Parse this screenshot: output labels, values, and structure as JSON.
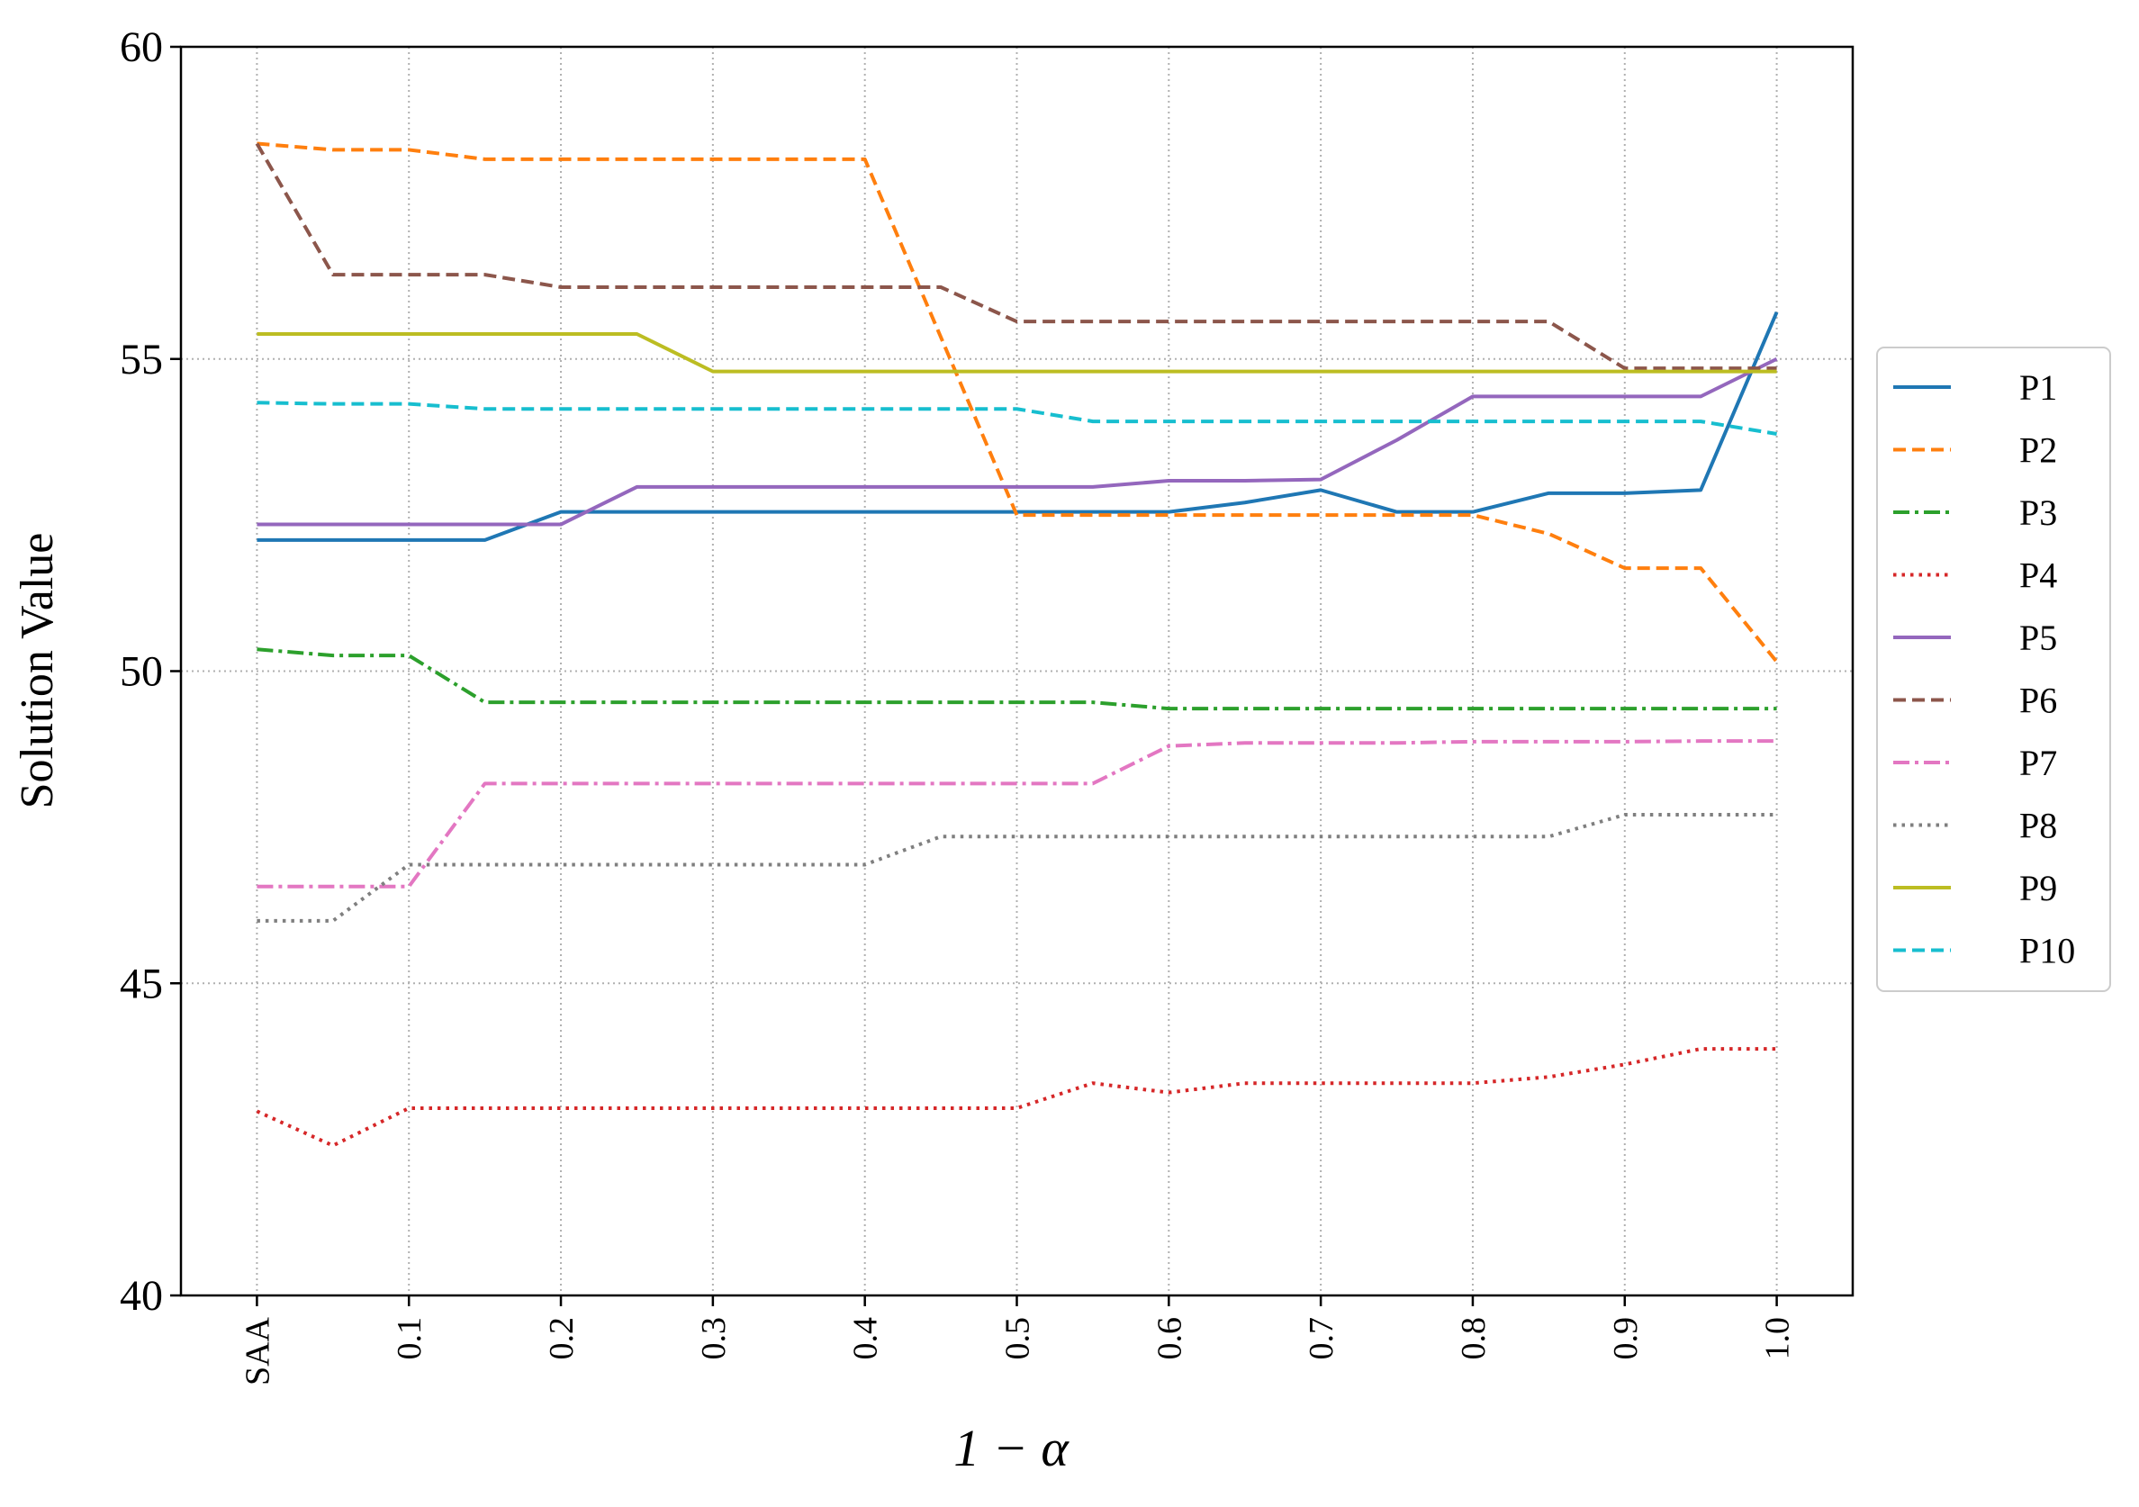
{
  "chart_data": {
    "type": "line",
    "x_label": "1 − α",
    "y_label": "Solution Value",
    "x": [
      0,
      0.05,
      0.1,
      0.15,
      0.2,
      0.25,
      0.3,
      0.35,
      0.4,
      0.45,
      0.5,
      0.55,
      0.6,
      0.65,
      0.7,
      0.75,
      0.8,
      0.85,
      0.9,
      0.95,
      1.0
    ],
    "xlim": [
      -0.05,
      1.05
    ],
    "xticks": [
      {
        "value": 0,
        "label": "SAA"
      },
      0.1,
      0.2,
      0.3,
      0.4,
      0.5,
      0.6,
      0.7,
      0.8,
      0.9,
      {
        "value": 1,
        "label": "1.0"
      }
    ],
    "ylim": [
      40,
      60
    ],
    "yticks": [
      40,
      45,
      50,
      55,
      60
    ],
    "grid": true,
    "legend": "right",
    "series": [
      {
        "name": "P1",
        "color": "#1f77b4",
        "linestyle": "solid",
        "values": [
          52.1,
          52.1,
          52.1,
          52.1,
          52.55,
          52.55,
          52.55,
          52.55,
          52.55,
          52.55,
          52.55,
          52.55,
          52.55,
          52.7,
          52.9,
          52.55,
          52.55,
          52.85,
          52.85,
          52.9,
          55.75
        ]
      },
      {
        "name": "P2",
        "color": "#ff7f0e",
        "linestyle": "dashed",
        "values": [
          58.45,
          58.35,
          58.35,
          58.2,
          58.2,
          58.2,
          58.2,
          58.2,
          58.2,
          55.35,
          52.5,
          52.5,
          52.5,
          52.5,
          52.5,
          52.5,
          52.5,
          52.2,
          51.65,
          51.65,
          50.15
        ]
      },
      {
        "name": "P3",
        "color": "#2ca02c",
        "linestyle": "dashdot",
        "values": [
          50.35,
          50.25,
          50.25,
          49.5,
          49.5,
          49.5,
          49.5,
          49.5,
          49.5,
          49.5,
          49.5,
          49.5,
          49.4,
          49.4,
          49.4,
          49.4,
          49.4,
          49.4,
          49.4,
          49.4,
          49.4
        ]
      },
      {
        "name": "P4",
        "color": "#d62728",
        "linestyle": "dotted",
        "values": [
          42.95,
          42.4,
          43.0,
          43.0,
          43.0,
          43.0,
          43.0,
          43.0,
          43.0,
          43.0,
          43.0,
          43.4,
          43.25,
          43.4,
          43.4,
          43.4,
          43.4,
          43.5,
          43.7,
          43.95,
          43.95
        ]
      },
      {
        "name": "P5",
        "color": "#9467bd",
        "linestyle": "solid",
        "values": [
          52.35,
          52.35,
          52.35,
          52.35,
          52.35,
          52.95,
          52.95,
          52.95,
          52.95,
          52.95,
          52.95,
          52.95,
          53.05,
          53.05,
          53.07,
          53.7,
          54.4,
          54.4,
          54.4,
          54.4,
          55.0
        ]
      },
      {
        "name": "P6",
        "color": "#8c564b",
        "linestyle": "dashed",
        "values": [
          58.45,
          56.35,
          56.35,
          56.35,
          56.15,
          56.15,
          56.15,
          56.15,
          56.15,
          56.15,
          55.6,
          55.6,
          55.6,
          55.6,
          55.6,
          55.6,
          55.6,
          55.6,
          54.85,
          54.85,
          54.85
        ]
      },
      {
        "name": "P7",
        "color": "#e377c2",
        "linestyle": "dashdot",
        "values": [
          46.55,
          46.55,
          46.55,
          48.2,
          48.2,
          48.2,
          48.2,
          48.2,
          48.2,
          48.2,
          48.2,
          48.2,
          48.8,
          48.85,
          48.85,
          48.85,
          48.87,
          48.87,
          48.87,
          48.88,
          48.88
        ]
      },
      {
        "name": "P8",
        "color": "#7f7f7f",
        "linestyle": "dotted",
        "values": [
          46.0,
          46.0,
          46.9,
          46.9,
          46.9,
          46.9,
          46.9,
          46.9,
          46.9,
          47.35,
          47.35,
          47.35,
          47.35,
          47.35,
          47.35,
          47.35,
          47.35,
          47.35,
          47.7,
          47.7,
          47.7
        ]
      },
      {
        "name": "P9",
        "color": "#bcbd22",
        "linestyle": "solid",
        "values": [
          55.4,
          55.4,
          55.4,
          55.4,
          55.4,
          55.4,
          54.8,
          54.8,
          54.8,
          54.8,
          54.8,
          54.8,
          54.8,
          54.8,
          54.8,
          54.8,
          54.8,
          54.8,
          54.8,
          54.8,
          54.8
        ]
      },
      {
        "name": "P10",
        "color": "#17becf",
        "linestyle": "dashed",
        "values": [
          54.3,
          54.28,
          54.28,
          54.2,
          54.2,
          54.2,
          54.2,
          54.2,
          54.2,
          54.2,
          54.2,
          54.0,
          54.0,
          54.0,
          54.0,
          54.0,
          54.0,
          54.0,
          54.0,
          54.0,
          53.8
        ]
      }
    ]
  }
}
